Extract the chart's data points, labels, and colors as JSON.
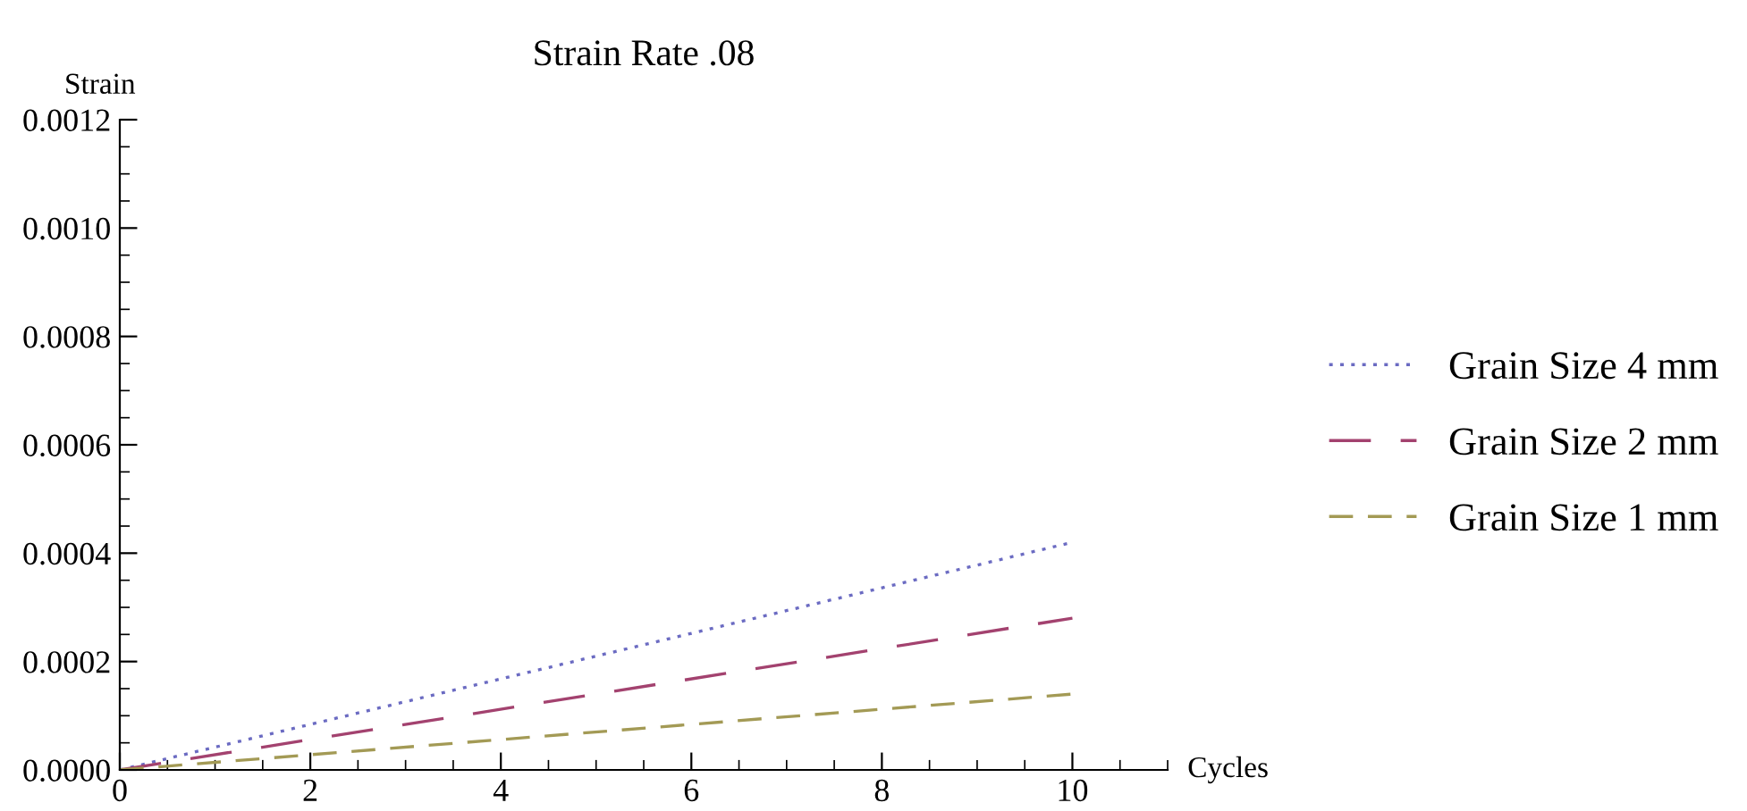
{
  "chart_data": {
    "type": "line",
    "title": "Strain Rate .08",
    "xlabel": "Cycles",
    "ylabel": "Strain",
    "series": [
      {
        "name": "Grain Size 4 mm",
        "color": "#6b6bc2",
        "line_style": "dotted",
        "values": [
          0,
          0.00042
        ]
      },
      {
        "name": "Grain Size 2 mm",
        "color": "#a3426f",
        "line_style": "dashed",
        "values": [
          0,
          0.00028
        ]
      },
      {
        "name": "Grain Size 1 mm",
        "color": "#a39a55",
        "line_style": "dashed",
        "values": [
          0,
          0.00014
        ]
      }
    ],
    "x": [
      0,
      10
    ],
    "xlim": [
      0,
      11
    ],
    "ylim": [
      0,
      0.0012
    ],
    "xticks": [
      0,
      {
        "value": 0.5,
        "label": null
      },
      {
        "value": 1,
        "label": null
      },
      {
        "value": 1.5,
        "label": null
      },
      2,
      {
        "value": 2.5,
        "label": null
      },
      {
        "value": 3,
        "label": null
      },
      {
        "value": 3.5,
        "label": null
      },
      4,
      {
        "value": 4.5,
        "label": null
      },
      {
        "value": 5,
        "label": null
      },
      {
        "value": 5.5,
        "label": null
      },
      6,
      {
        "value": 6.5,
        "label": null
      },
      {
        "value": 7,
        "label": null
      },
      {
        "value": 7.5,
        "label": null
      },
      8,
      {
        "value": 8.5,
        "label": null
      },
      {
        "value": 9,
        "label": null
      },
      {
        "value": 9.5,
        "label": null
      },
      10,
      {
        "value": 10.5,
        "label": null
      },
      {
        "value": 11,
        "label": null
      }
    ],
    "yticks": [
      {
        "value": 0,
        "label": "0.0000"
      },
      {
        "value": 5e-05,
        "label": null
      },
      {
        "value": 0.0001,
        "label": null
      },
      {
        "value": 0.00015,
        "label": null
      },
      {
        "value": 0.0002,
        "label": "0.0002"
      },
      {
        "value": 0.00025,
        "label": null
      },
      {
        "value": 0.0003,
        "label": null
      },
      {
        "value": 0.00035,
        "label": null
      },
      {
        "value": 0.0004,
        "label": "0.0004"
      },
      {
        "value": 0.00045,
        "label": null
      },
      {
        "value": 0.0005,
        "label": null
      },
      {
        "value": 0.00055,
        "label": null
      },
      {
        "value": 0.0006,
        "label": "0.0006"
      },
      {
        "value": 0.00065,
        "label": null
      },
      {
        "value": 0.0007,
        "label": null
      },
      {
        "value": 0.00075,
        "label": null
      },
      {
        "value": 0.0008,
        "label": "0.0008"
      },
      {
        "value": 0.00085,
        "label": null
      },
      {
        "value": 0.0009,
        "label": null
      },
      {
        "value": 0.00095,
        "label": null
      },
      {
        "value": 0.001,
        "label": "0.0010"
      },
      {
        "value": 0.00105,
        "label": null
      },
      {
        "value": 0.0011,
        "label": null
      },
      {
        "value": 0.00115,
        "label": null
      },
      {
        "value": 0.0012,
        "label": "0.0012"
      }
    ],
    "grid": false,
    "legend": "right"
  }
}
